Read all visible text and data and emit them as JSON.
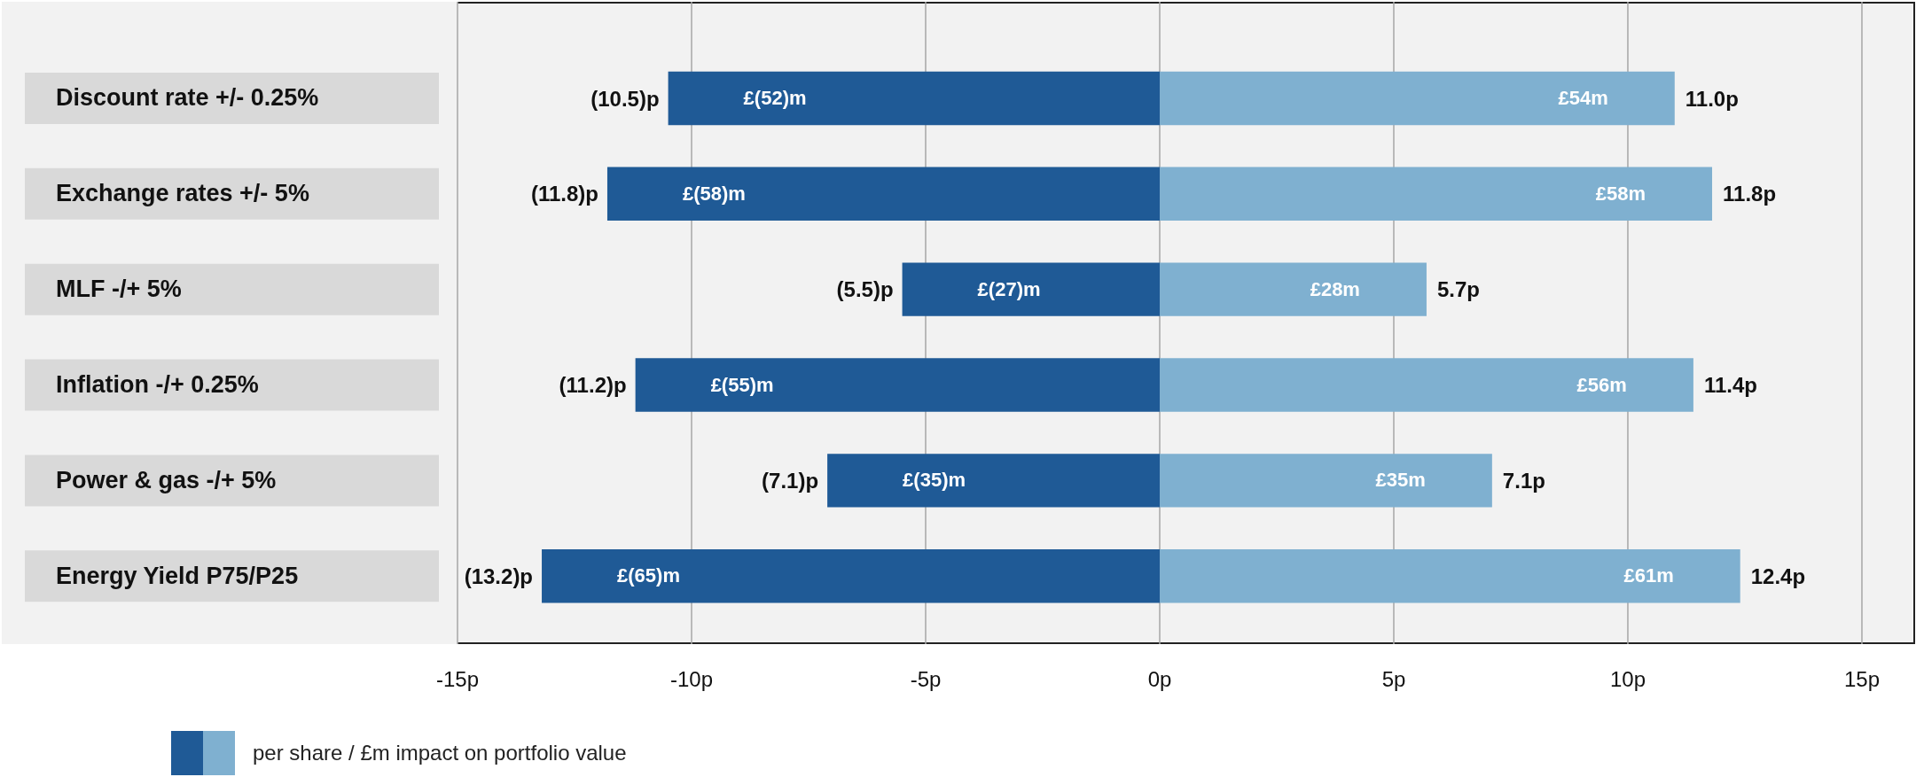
{
  "chart_data": {
    "type": "bar",
    "orientation": "horizontal",
    "stacked": true,
    "grid": "x",
    "categories": [
      "Discount rate +/- 0.25%",
      "Exchange rates +/- 5%",
      "MLF -/+ 5%",
      "Inflation -/+ 0.25%",
      "Power & gas -/+ 5%",
      "Energy Yield P75/P25"
    ],
    "series": [
      {
        "color": "#1f5a96",
        "values": [
          -10.5,
          -11.8,
          -5.5,
          -11.2,
          -7.1,
          -13.2
        ],
        "value_labels": [
          "(10.5)p",
          "(11.8)p",
          "(5.5)p",
          "(11.2)p",
          "(7.1)p",
          "(13.2)p"
        ]
      },
      {
        "color": "#7fb0d0",
        "values": [
          11.0,
          11.8,
          5.7,
          11.4,
          7.1,
          12.4
        ],
        "value_labels": [
          "11.0p",
          "11.8p",
          "5.7p",
          "11.4p",
          "7.1p",
          "12.4p"
        ]
      }
    ],
    "xlim": [
      -15,
      15
    ],
    "xticks": [
      {
        "value": -15,
        "label": "-15p"
      },
      {
        "value": -10,
        "label": "-10p"
      },
      {
        "value": -5,
        "label": "-5p"
      },
      {
        "value": 0,
        "label": "0p"
      },
      {
        "value": 5,
        "label": "5p"
      },
      {
        "value": 10,
        "label": "10p"
      },
      {
        "value": 15,
        "label": "15p"
      }
    ],
    "annotations": [
      "£(52)m",
      "£54m",
      "£(58)m",
      "£58m",
      "£(27)m",
      "£28m",
      "£(55)m",
      "£56m",
      "£(35)m",
      "£35m",
      "£(65)m",
      "£61m",
      "per share / £m impact on portfolio value"
    ]
  }
}
